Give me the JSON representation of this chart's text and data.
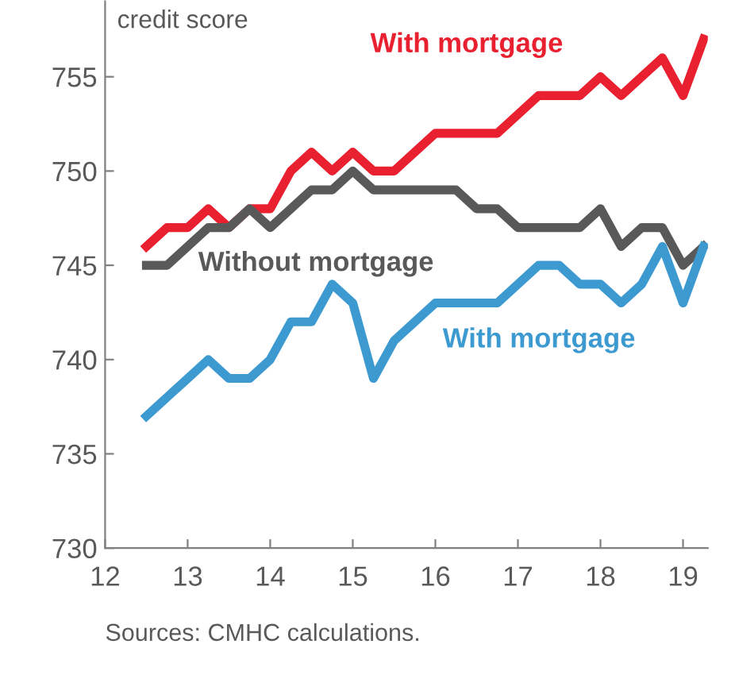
{
  "chart_data": {
    "type": "line",
    "title": "credit score",
    "x": [
      12.5,
      12.75,
      13,
      13.25,
      13.5,
      13.75,
      14,
      14.25,
      14.5,
      14.75,
      15,
      15.25,
      15.5,
      15.75,
      16,
      16.25,
      16.5,
      16.75,
      17,
      17.25,
      17.5,
      17.75,
      18,
      18.25,
      18.5,
      18.75,
      19,
      19.25
    ],
    "series": [
      {
        "name": "With mortgage",
        "color": "#e8202f",
        "values": [
          746,
          747,
          747,
          748,
          747,
          748,
          748,
          750,
          751,
          750,
          751,
          750,
          750,
          751,
          752,
          752,
          752,
          752,
          753,
          754,
          754,
          754,
          755,
          754,
          755,
          756,
          754,
          757
        ]
      },
      {
        "name": "Without mortgage",
        "color": "#595959",
        "values": [
          745,
          745,
          746,
          747,
          747,
          748,
          747,
          748,
          749,
          749,
          750,
          749,
          749,
          749,
          749,
          749,
          748,
          748,
          747,
          747,
          747,
          747,
          748,
          746,
          747,
          747,
          745,
          746
        ]
      },
      {
        "name": "With mortgage",
        "color": "#3d9ad1",
        "values": [
          737,
          738,
          739,
          740,
          739,
          739,
          740,
          742,
          742,
          744,
          743,
          739,
          741,
          742,
          743,
          743,
          743,
          743,
          744,
          745,
          745,
          744,
          744,
          743,
          744,
          746,
          743,
          746
        ]
      }
    ],
    "xlim": [
      12,
      19.3
    ],
    "xticks": [
      12,
      13,
      14,
      15,
      16,
      17,
      18,
      19
    ],
    "ylim": [
      730,
      759
    ],
    "yticks": [
      730,
      735,
      740,
      745,
      750,
      755
    ],
    "grid": false,
    "legend": false,
    "line_style": "solid",
    "marker": "none",
    "annotations": [
      "Sources: CMHC calculations."
    ]
  }
}
